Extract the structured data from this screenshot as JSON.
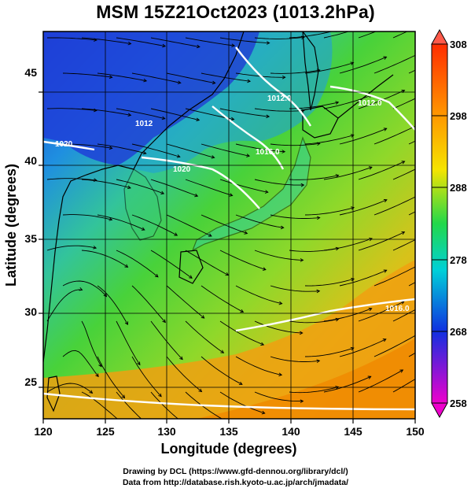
{
  "title": "MSM 15Z21Oct2023 (1013.2hPa)",
  "x_axis": {
    "label": "Longitude (degrees)",
    "ticks": [
      "120",
      "125",
      "130",
      "135",
      "140",
      "145",
      "150"
    ],
    "range": [
      120,
      150
    ]
  },
  "y_axis": {
    "label": "Latitude  (degrees)",
    "ticks": [
      "25",
      "30",
      "35",
      "40",
      "45"
    ],
    "range": [
      22.4,
      47.6
    ]
  },
  "colorbar": {
    "ticks": [
      "308",
      "298",
      "288",
      "278",
      "268",
      "258"
    ],
    "range": [
      258,
      308
    ],
    "colors": [
      "#ff00ff",
      "#0000ff",
      "#00ffff",
      "#00ff00",
      "#ffff00",
      "#ff8000",
      "#ff0000"
    ]
  },
  "isobars": [
    {
      "label": "1012.0"
    },
    {
      "label": "1016.0"
    },
    {
      "label": "1020"
    },
    {
      "label": "1012"
    },
    {
      "label": "1020"
    },
    {
      "label": "1012.0"
    },
    {
      "label": "1016.0"
    }
  ],
  "footer": {
    "line1": "Drawing by DCL (https://www.gfd-dennou.org/library/dcl/)",
    "line2": "Data from http://database.rish.kyoto-u.ac.jp/arch/jmadata/"
  }
}
